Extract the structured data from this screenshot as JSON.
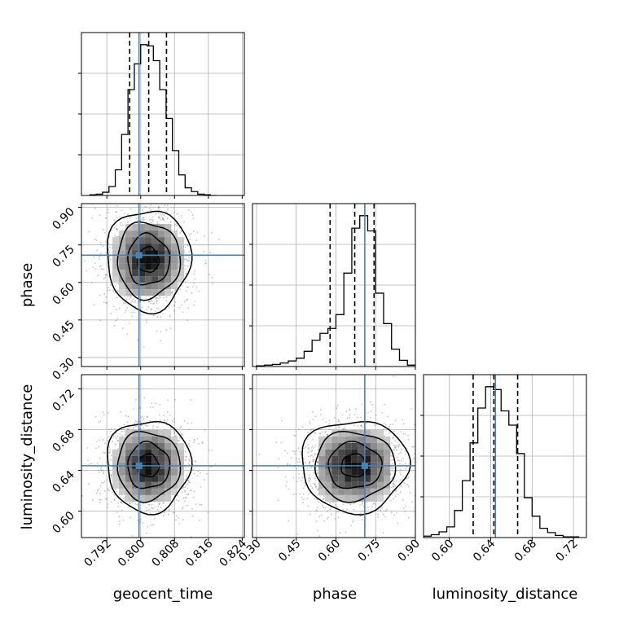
{
  "chart_data": [
    {
      "type": "histogram",
      "panel": "geocent_time",
      "x": [
        0.788,
        0.7895,
        0.791,
        0.7925,
        0.794,
        0.7955,
        0.797,
        0.7985,
        0.8,
        0.8015,
        0.803,
        0.8045,
        0.806,
        0.8075,
        0.809,
        0.8105,
        0.812,
        0.8135,
        0.815,
        0.8165
      ],
      "values": [
        1,
        2,
        5,
        14,
        40,
        95,
        165,
        205,
        235,
        233,
        210,
        165,
        120,
        70,
        32,
        12,
        6,
        2,
        1,
        0
      ],
      "quantiles": [
        0.7974,
        0.8019,
        0.8061
      ],
      "truth": 0.7996,
      "xlim": [
        0.786,
        0.8245
      ],
      "ticks": [
        "0.792",
        "0.800",
        "0.808",
        "0.816",
        "0.824"
      ],
      "grid": true
    },
    {
      "type": "histogram",
      "panel": "phase",
      "x": [
        0.3,
        0.33,
        0.36,
        0.39,
        0.42,
        0.45,
        0.48,
        0.51,
        0.54,
        0.57,
        0.6,
        0.63,
        0.66,
        0.69,
        0.72,
        0.75,
        0.78,
        0.81,
        0.84,
        0.87
      ],
      "values": [
        1,
        2,
        3,
        5,
        8,
        12,
        22,
        38,
        48,
        55,
        75,
        135,
        200,
        218,
        196,
        106,
        62,
        25,
        9,
        2
      ],
      "quantiles": [
        0.578,
        0.671,
        0.744
      ],
      "truth": 0.709,
      "xlim": [
        0.285,
        0.9
      ],
      "ticks": [
        "0.30",
        "0.45",
        "0.60",
        "0.75",
        "0.90"
      ],
      "grid": true
    },
    {
      "type": "histogram",
      "panel": "luminosity_distance",
      "x": [
        0.575,
        0.5825,
        0.59,
        0.5975,
        0.605,
        0.6125,
        0.62,
        0.6275,
        0.635,
        0.6425,
        0.65,
        0.6575,
        0.665,
        0.6725,
        0.68,
        0.6875,
        0.695,
        0.7025,
        0.71,
        0.7175
      ],
      "values": [
        2,
        4,
        8,
        15,
        38,
        80,
        133,
        182,
        212,
        208,
        178,
        158,
        118,
        56,
        30,
        13,
        7,
        3,
        1,
        1
      ],
      "quantiles": [
        0.623,
        0.643,
        0.666
      ],
      "truth": 0.6445,
      "xlim": [
        0.575,
        0.7325
      ],
      "ticks": [
        "0.60",
        "0.64",
        "0.68",
        "0.72"
      ],
      "grid": true
    },
    {
      "type": "scatter",
      "panel": "phase vs geocent_time",
      "x_param": "geocent_time",
      "y_param": "phase",
      "center": [
        0.8018,
        0.69
      ],
      "spread": [
        0.0045,
        0.092
      ],
      "levels_sigma": [
        0.5,
        1.0,
        1.5,
        2.0
      ],
      "truth": [
        0.7996,
        0.709
      ],
      "xlim": [
        0.786,
        0.8245
      ],
      "ylim": [
        0.264,
        0.915
      ],
      "yticks": [
        "0.30",
        "0.45",
        "0.60",
        "0.75",
        "0.90"
      ]
    },
    {
      "type": "scatter",
      "panel": "luminosity_distance vs geocent_time",
      "x_param": "geocent_time",
      "y_param": "luminosity_distance",
      "center": [
        0.8018,
        0.6445
      ],
      "spread": [
        0.0045,
        0.0205
      ],
      "levels_sigma": [
        0.5,
        1.0,
        1.5,
        2.0
      ],
      "truth": [
        0.7996,
        0.6445
      ],
      "xlim": [
        0.786,
        0.8245
      ],
      "ylim": [
        0.574,
        0.734
      ],
      "yticks": [
        "0.60",
        "0.64",
        "0.68",
        "0.72"
      ]
    },
    {
      "type": "scatter",
      "panel": "luminosity_distance vs phase",
      "x_param": "phase",
      "y_param": "luminosity_distance",
      "center": [
        0.67,
        0.6445
      ],
      "spread": [
        0.092,
        0.0205
      ],
      "levels_sigma": [
        0.5,
        1.0,
        1.5,
        2.0
      ],
      "truth": [
        0.709,
        0.6445
      ],
      "xlim": [
        0.285,
        0.9
      ],
      "ylim": [
        0.574,
        0.734
      ]
    }
  ],
  "labels": {
    "geocent_time": "geocent_time",
    "phase": "phase",
    "luminosity_distance": "luminosity_distance"
  },
  "colors": {
    "truth": "#4682b4",
    "hist": "#000000",
    "grid": "#b0b0b0"
  }
}
